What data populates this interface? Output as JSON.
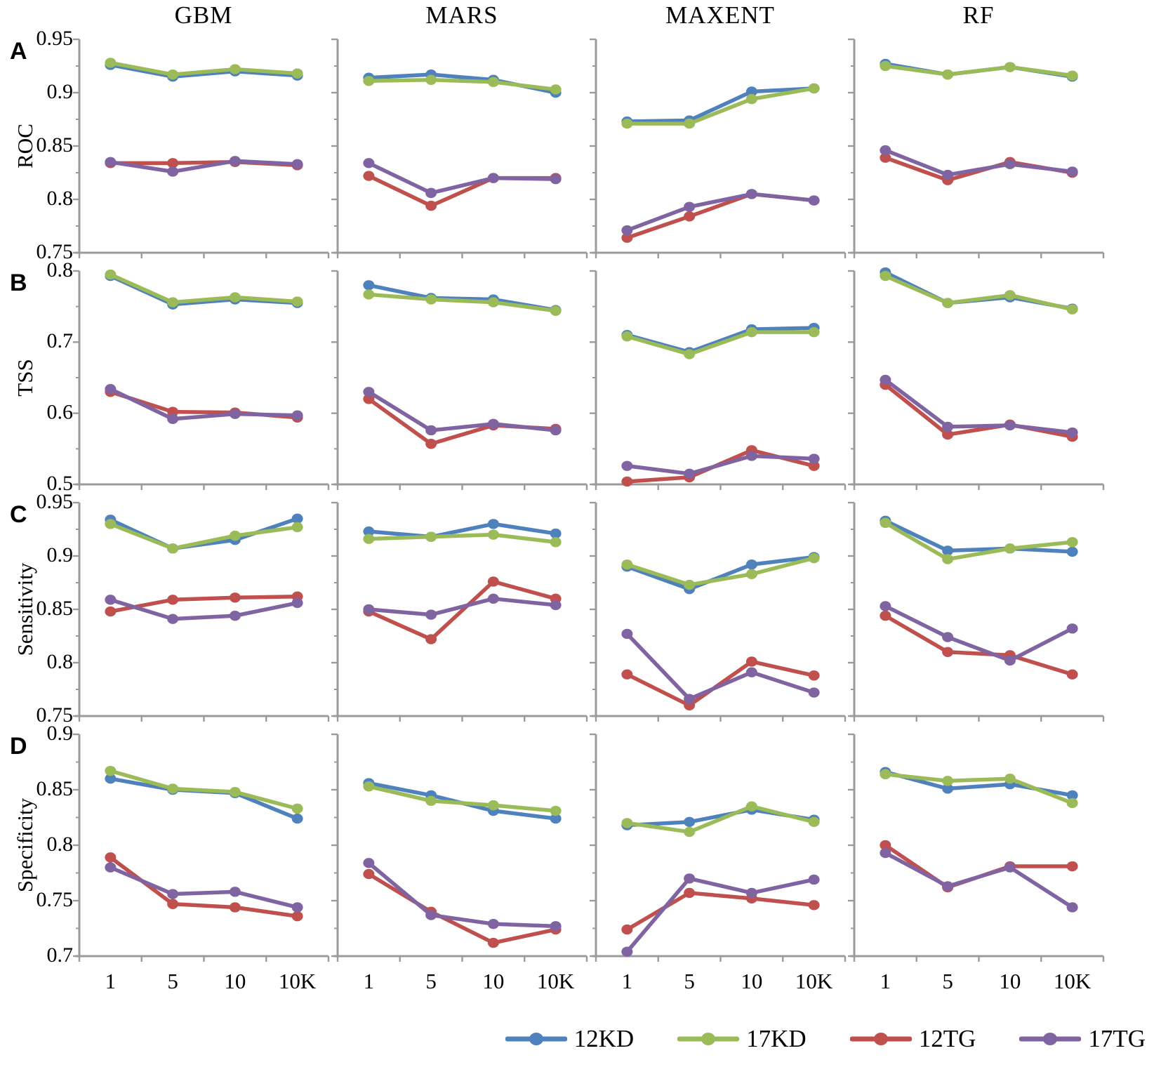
{
  "figure": {
    "columns": [
      "GBM",
      "MARS",
      "MAXENT",
      "RF"
    ],
    "x_tick_labels": [
      "1",
      "5",
      "10",
      "10K"
    ],
    "axis_color": "#9b9b9b",
    "text_color": "#000000"
  },
  "legend": {
    "items": [
      {
        "label": "12KD",
        "color": "#4F81BD"
      },
      {
        "label": "17KD",
        "color": "#9BBB59"
      },
      {
        "label": "12TG",
        "color": "#C0504D"
      },
      {
        "label": "17TG",
        "color": "#8064A2"
      }
    ]
  },
  "chart_data": [
    {
      "type": "line",
      "panel_letter": "A",
      "ylabel": "ROC",
      "ylim": [
        0.75,
        0.95
      ],
      "ytick_labels": [
        "0.75",
        "0.8",
        "0.85",
        "0.9",
        "0.95"
      ],
      "minor_tick_step": 0.025,
      "x_categories": [
        "1",
        "5",
        "10",
        "10K"
      ],
      "panels": [
        {
          "model": "GBM",
          "series": [
            {
              "name": "12KD",
              "values": [
                0.926,
                0.915,
                0.92,
                0.916
              ]
            },
            {
              "name": "17KD",
              "values": [
                0.928,
                0.917,
                0.922,
                0.918
              ]
            },
            {
              "name": "12TG",
              "values": [
                0.834,
                0.834,
                0.835,
                0.832
              ]
            },
            {
              "name": "17TG",
              "values": [
                0.835,
                0.826,
                0.836,
                0.833
              ]
            }
          ]
        },
        {
          "model": "MARS",
          "series": [
            {
              "name": "12KD",
              "values": [
                0.914,
                0.917,
                0.912,
                0.9
              ]
            },
            {
              "name": "17KD",
              "values": [
                0.911,
                0.912,
                0.91,
                0.903
              ]
            },
            {
              "name": "12TG",
              "values": [
                0.822,
                0.794,
                0.82,
                0.82
              ]
            },
            {
              "name": "17TG",
              "values": [
                0.834,
                0.806,
                0.82,
                0.819
              ]
            }
          ]
        },
        {
          "model": "MAXENT",
          "series": [
            {
              "name": "12KD",
              "values": [
                0.873,
                0.874,
                0.901,
                0.904
              ]
            },
            {
              "name": "17KD",
              "values": [
                0.871,
                0.871,
                0.894,
                0.904
              ]
            },
            {
              "name": "12TG",
              "values": [
                0.764,
                0.784,
                0.805,
                0.799
              ]
            },
            {
              "name": "17TG",
              "values": [
                0.771,
                0.793,
                0.805,
                0.799
              ]
            }
          ]
        },
        {
          "model": "RF",
          "series": [
            {
              "name": "12KD",
              "values": [
                0.927,
                0.917,
                0.924,
                0.915
              ]
            },
            {
              "name": "17KD",
              "values": [
                0.925,
                0.917,
                0.924,
                0.916
              ]
            },
            {
              "name": "12TG",
              "values": [
                0.839,
                0.818,
                0.835,
                0.825
              ]
            },
            {
              "name": "17TG",
              "values": [
                0.846,
                0.823,
                0.833,
                0.826
              ]
            }
          ]
        }
      ]
    },
    {
      "type": "line",
      "panel_letter": "B",
      "ylabel": "TSS",
      "ylim": [
        0.5,
        0.8
      ],
      "ytick_labels": [
        "0.5",
        "0.6",
        "0.7",
        "0.8"
      ],
      "minor_tick_step": 0.05,
      "x_categories": [
        "1",
        "5",
        "10",
        "10K"
      ],
      "panels": [
        {
          "model": "GBM",
          "series": [
            {
              "name": "12KD",
              "values": [
                0.793,
                0.753,
                0.76,
                0.755
              ]
            },
            {
              "name": "17KD",
              "values": [
                0.795,
                0.756,
                0.763,
                0.757
              ]
            },
            {
              "name": "12TG",
              "values": [
                0.63,
                0.602,
                0.601,
                0.594
              ]
            },
            {
              "name": "17TG",
              "values": [
                0.634,
                0.592,
                0.599,
                0.597
              ]
            }
          ]
        },
        {
          "model": "MARS",
          "series": [
            {
              "name": "12KD",
              "values": [
                0.78,
                0.762,
                0.76,
                0.745
              ]
            },
            {
              "name": "17KD",
              "values": [
                0.767,
                0.76,
                0.756,
                0.744
              ]
            },
            {
              "name": "12TG",
              "values": [
                0.62,
                0.557,
                0.583,
                0.578
              ]
            },
            {
              "name": "17TG",
              "values": [
                0.63,
                0.576,
                0.585,
                0.576
              ]
            }
          ]
        },
        {
          "model": "MAXENT",
          "series": [
            {
              "name": "12KD",
              "values": [
                0.71,
                0.686,
                0.718,
                0.72
              ]
            },
            {
              "name": "17KD",
              "values": [
                0.708,
                0.683,
                0.714,
                0.714
              ]
            },
            {
              "name": "12TG",
              "values": [
                0.504,
                0.51,
                0.548,
                0.526
              ]
            },
            {
              "name": "17TG",
              "values": [
                0.526,
                0.515,
                0.54,
                0.536
              ]
            }
          ]
        },
        {
          "model": "RF",
          "series": [
            {
              "name": "12KD",
              "values": [
                0.798,
                0.755,
                0.763,
                0.747
              ]
            },
            {
              "name": "17KD",
              "values": [
                0.793,
                0.755,
                0.766,
                0.746
              ]
            },
            {
              "name": "12TG",
              "values": [
                0.64,
                0.57,
                0.584,
                0.567
              ]
            },
            {
              "name": "17TG",
              "values": [
                0.647,
                0.581,
                0.583,
                0.573
              ]
            }
          ]
        }
      ]
    },
    {
      "type": "line",
      "panel_letter": "C",
      "ylabel": "Sensitivity",
      "ylim": [
        0.75,
        0.95
      ],
      "ytick_labels": [
        "0.75",
        "0.8",
        "0.85",
        "0.9",
        "0.95"
      ],
      "minor_tick_step": 0.025,
      "x_categories": [
        "1",
        "5",
        "10",
        "10K"
      ],
      "panels": [
        {
          "model": "GBM",
          "series": [
            {
              "name": "12KD",
              "values": [
                0.934,
                0.907,
                0.915,
                0.935
              ]
            },
            {
              "name": "17KD",
              "values": [
                0.93,
                0.907,
                0.919,
                0.927
              ]
            },
            {
              "name": "12TG",
              "values": [
                0.848,
                0.859,
                0.861,
                0.862
              ]
            },
            {
              "name": "17TG",
              "values": [
                0.859,
                0.841,
                0.844,
                0.856
              ]
            }
          ]
        },
        {
          "model": "MARS",
          "series": [
            {
              "name": "12KD",
              "values": [
                0.923,
                0.918,
                0.93,
                0.921
              ]
            },
            {
              "name": "17KD",
              "values": [
                0.916,
                0.918,
                0.92,
                0.913
              ]
            },
            {
              "name": "12TG",
              "values": [
                0.848,
                0.822,
                0.876,
                0.86
              ]
            },
            {
              "name": "17TG",
              "values": [
                0.85,
                0.845,
                0.86,
                0.854
              ]
            }
          ]
        },
        {
          "model": "MAXENT",
          "series": [
            {
              "name": "12KD",
              "values": [
                0.89,
                0.869,
                0.892,
                0.899
              ]
            },
            {
              "name": "17KD",
              "values": [
                0.892,
                0.873,
                0.883,
                0.898
              ]
            },
            {
              "name": "12TG",
              "values": [
                0.789,
                0.76,
                0.801,
                0.788
              ]
            },
            {
              "name": "17TG",
              "values": [
                0.827,
                0.766,
                0.791,
                0.772
              ]
            }
          ]
        },
        {
          "model": "RF",
          "series": [
            {
              "name": "12KD",
              "values": [
                0.933,
                0.905,
                0.907,
                0.904
              ]
            },
            {
              "name": "17KD",
              "values": [
                0.931,
                0.897,
                0.907,
                0.913
              ]
            },
            {
              "name": "12TG",
              "values": [
                0.844,
                0.81,
                0.807,
                0.789
              ]
            },
            {
              "name": "17TG",
              "values": [
                0.853,
                0.824,
                0.802,
                0.832
              ]
            }
          ]
        }
      ]
    },
    {
      "type": "line",
      "panel_letter": "D",
      "ylabel": "Specificity",
      "ylim": [
        0.7,
        0.9
      ],
      "ytick_labels": [
        "0.7",
        "0.75",
        "0.8",
        "0.85",
        "0.9"
      ],
      "minor_tick_step": 0.025,
      "x_categories": [
        "1",
        "5",
        "10",
        "10K"
      ],
      "panels": [
        {
          "model": "GBM",
          "series": [
            {
              "name": "12KD",
              "values": [
                0.86,
                0.85,
                0.847,
                0.824
              ]
            },
            {
              "name": "17KD",
              "values": [
                0.867,
                0.851,
                0.848,
                0.833
              ]
            },
            {
              "name": "12TG",
              "values": [
                0.789,
                0.747,
                0.744,
                0.736
              ]
            },
            {
              "name": "17TG",
              "values": [
                0.78,
                0.756,
                0.758,
                0.744
              ]
            }
          ]
        },
        {
          "model": "MARS",
          "series": [
            {
              "name": "12KD",
              "values": [
                0.856,
                0.845,
                0.831,
                0.824
              ]
            },
            {
              "name": "17KD",
              "values": [
                0.853,
                0.84,
                0.836,
                0.831
              ]
            },
            {
              "name": "12TG",
              "values": [
                0.774,
                0.74,
                0.712,
                0.724
              ]
            },
            {
              "name": "17TG",
              "values": [
                0.784,
                0.737,
                0.729,
                0.727
              ]
            }
          ]
        },
        {
          "model": "MAXENT",
          "series": [
            {
              "name": "12KD",
              "values": [
                0.818,
                0.821,
                0.832,
                0.823
              ]
            },
            {
              "name": "17KD",
              "values": [
                0.82,
                0.812,
                0.835,
                0.821
              ]
            },
            {
              "name": "12TG",
              "values": [
                0.724,
                0.757,
                0.752,
                0.746
              ]
            },
            {
              "name": "17TG",
              "values": [
                0.704,
                0.77,
                0.757,
                0.769
              ]
            }
          ]
        },
        {
          "model": "RF",
          "series": [
            {
              "name": "12KD",
              "values": [
                0.866,
                0.851,
                0.855,
                0.845
              ]
            },
            {
              "name": "17KD",
              "values": [
                0.864,
                0.858,
                0.86,
                0.838
              ]
            },
            {
              "name": "12TG",
              "values": [
                0.8,
                0.762,
                0.781,
                0.781
              ]
            },
            {
              "name": "17TG",
              "values": [
                0.793,
                0.763,
                0.78,
                0.744
              ]
            }
          ]
        }
      ]
    }
  ]
}
